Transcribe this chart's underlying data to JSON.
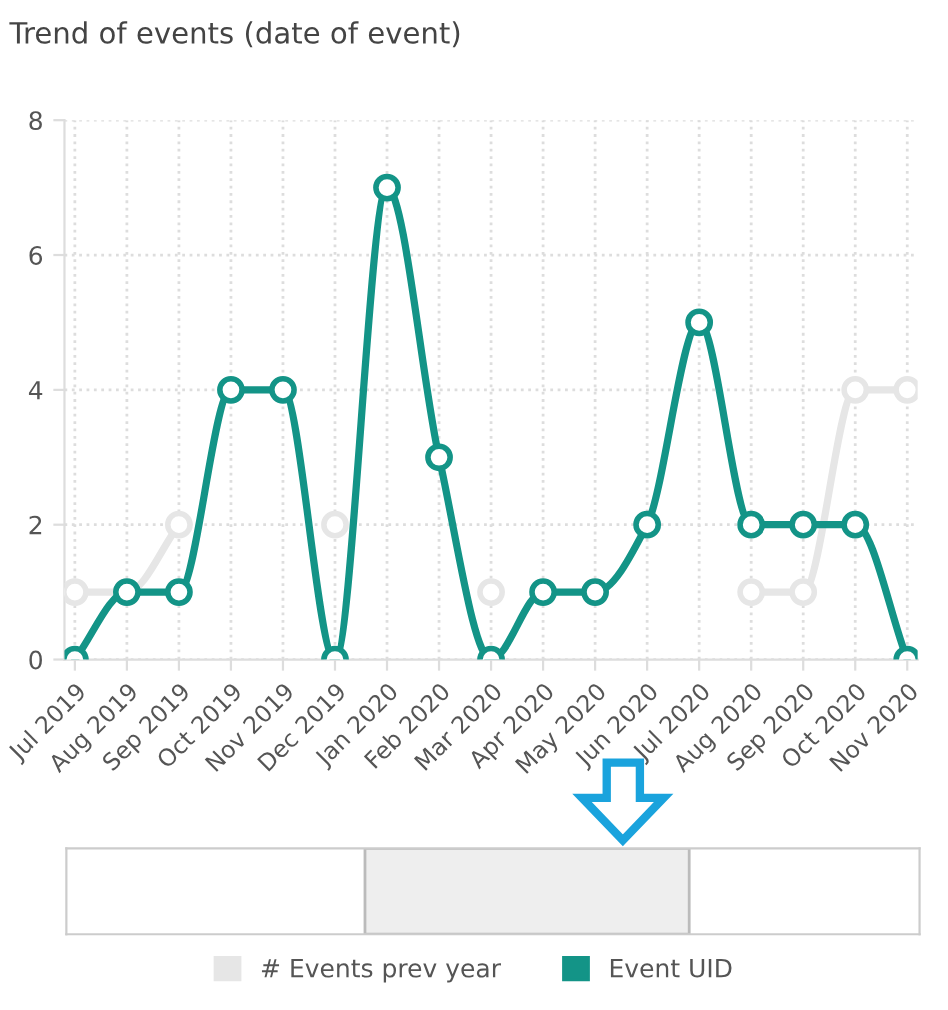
{
  "chart_data": {
    "type": "line",
    "title": "Trend of events (date of event)",
    "categories": [
      "Jul 2019",
      "Aug 2019",
      "Sep 2019",
      "Oct 2019",
      "Nov 2019",
      "Dec 2019",
      "Jan 2020",
      "Feb 2020",
      "Mar 2020",
      "Apr 2020",
      "May 2020",
      "Jun 2020",
      "Jul 2020",
      "Aug 2020",
      "Sep 2020",
      "Oct 2020",
      "Nov 2020"
    ],
    "series": [
      {
        "name": "# Events prev year",
        "color": "#e6e6e6",
        "values": [
          1,
          1,
          2,
          null,
          null,
          2,
          null,
          null,
          1,
          null,
          null,
          null,
          null,
          1,
          1,
          4,
          4
        ]
      },
      {
        "name": "Event UID",
        "color": "#139487",
        "values": [
          0,
          1,
          1,
          4,
          4,
          0,
          7,
          3,
          0,
          1,
          1,
          2,
          5,
          2,
          2,
          2,
          0
        ]
      }
    ],
    "ylim": [
      0,
      8
    ],
    "yticks": [
      0,
      2,
      4,
      6,
      8
    ],
    "grid": true,
    "legend": "bottom",
    "marker": "circle",
    "line_style": "solid"
  }
}
